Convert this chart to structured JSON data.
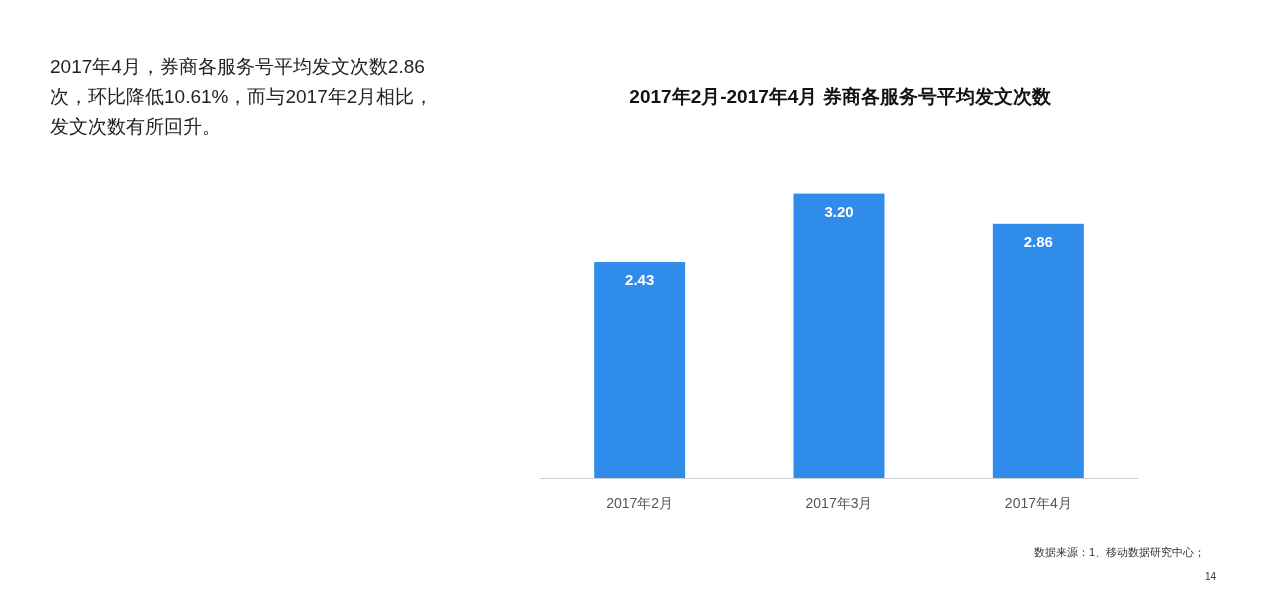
{
  "chart_data": {
    "type": "bar",
    "title": "2017年2月-2017年4月 券商各服务号平均发文次数",
    "categories": [
      "2017年2月",
      "2017年3月",
      "2017年4月"
    ],
    "values": [
      2.43,
      3.2,
      2.86
    ],
    "value_labels": [
      "2.43",
      "3.20",
      "2.86"
    ],
    "color": "#2f8ceb",
    "annotations": [
      "2017年4月，券商各服务号平均发文次数2.86次，环比降低10.61%，而与2017年2月相比，发文次数有所回升。",
      "数据来源：1、移动数据研究中心；",
      "14"
    ]
  }
}
